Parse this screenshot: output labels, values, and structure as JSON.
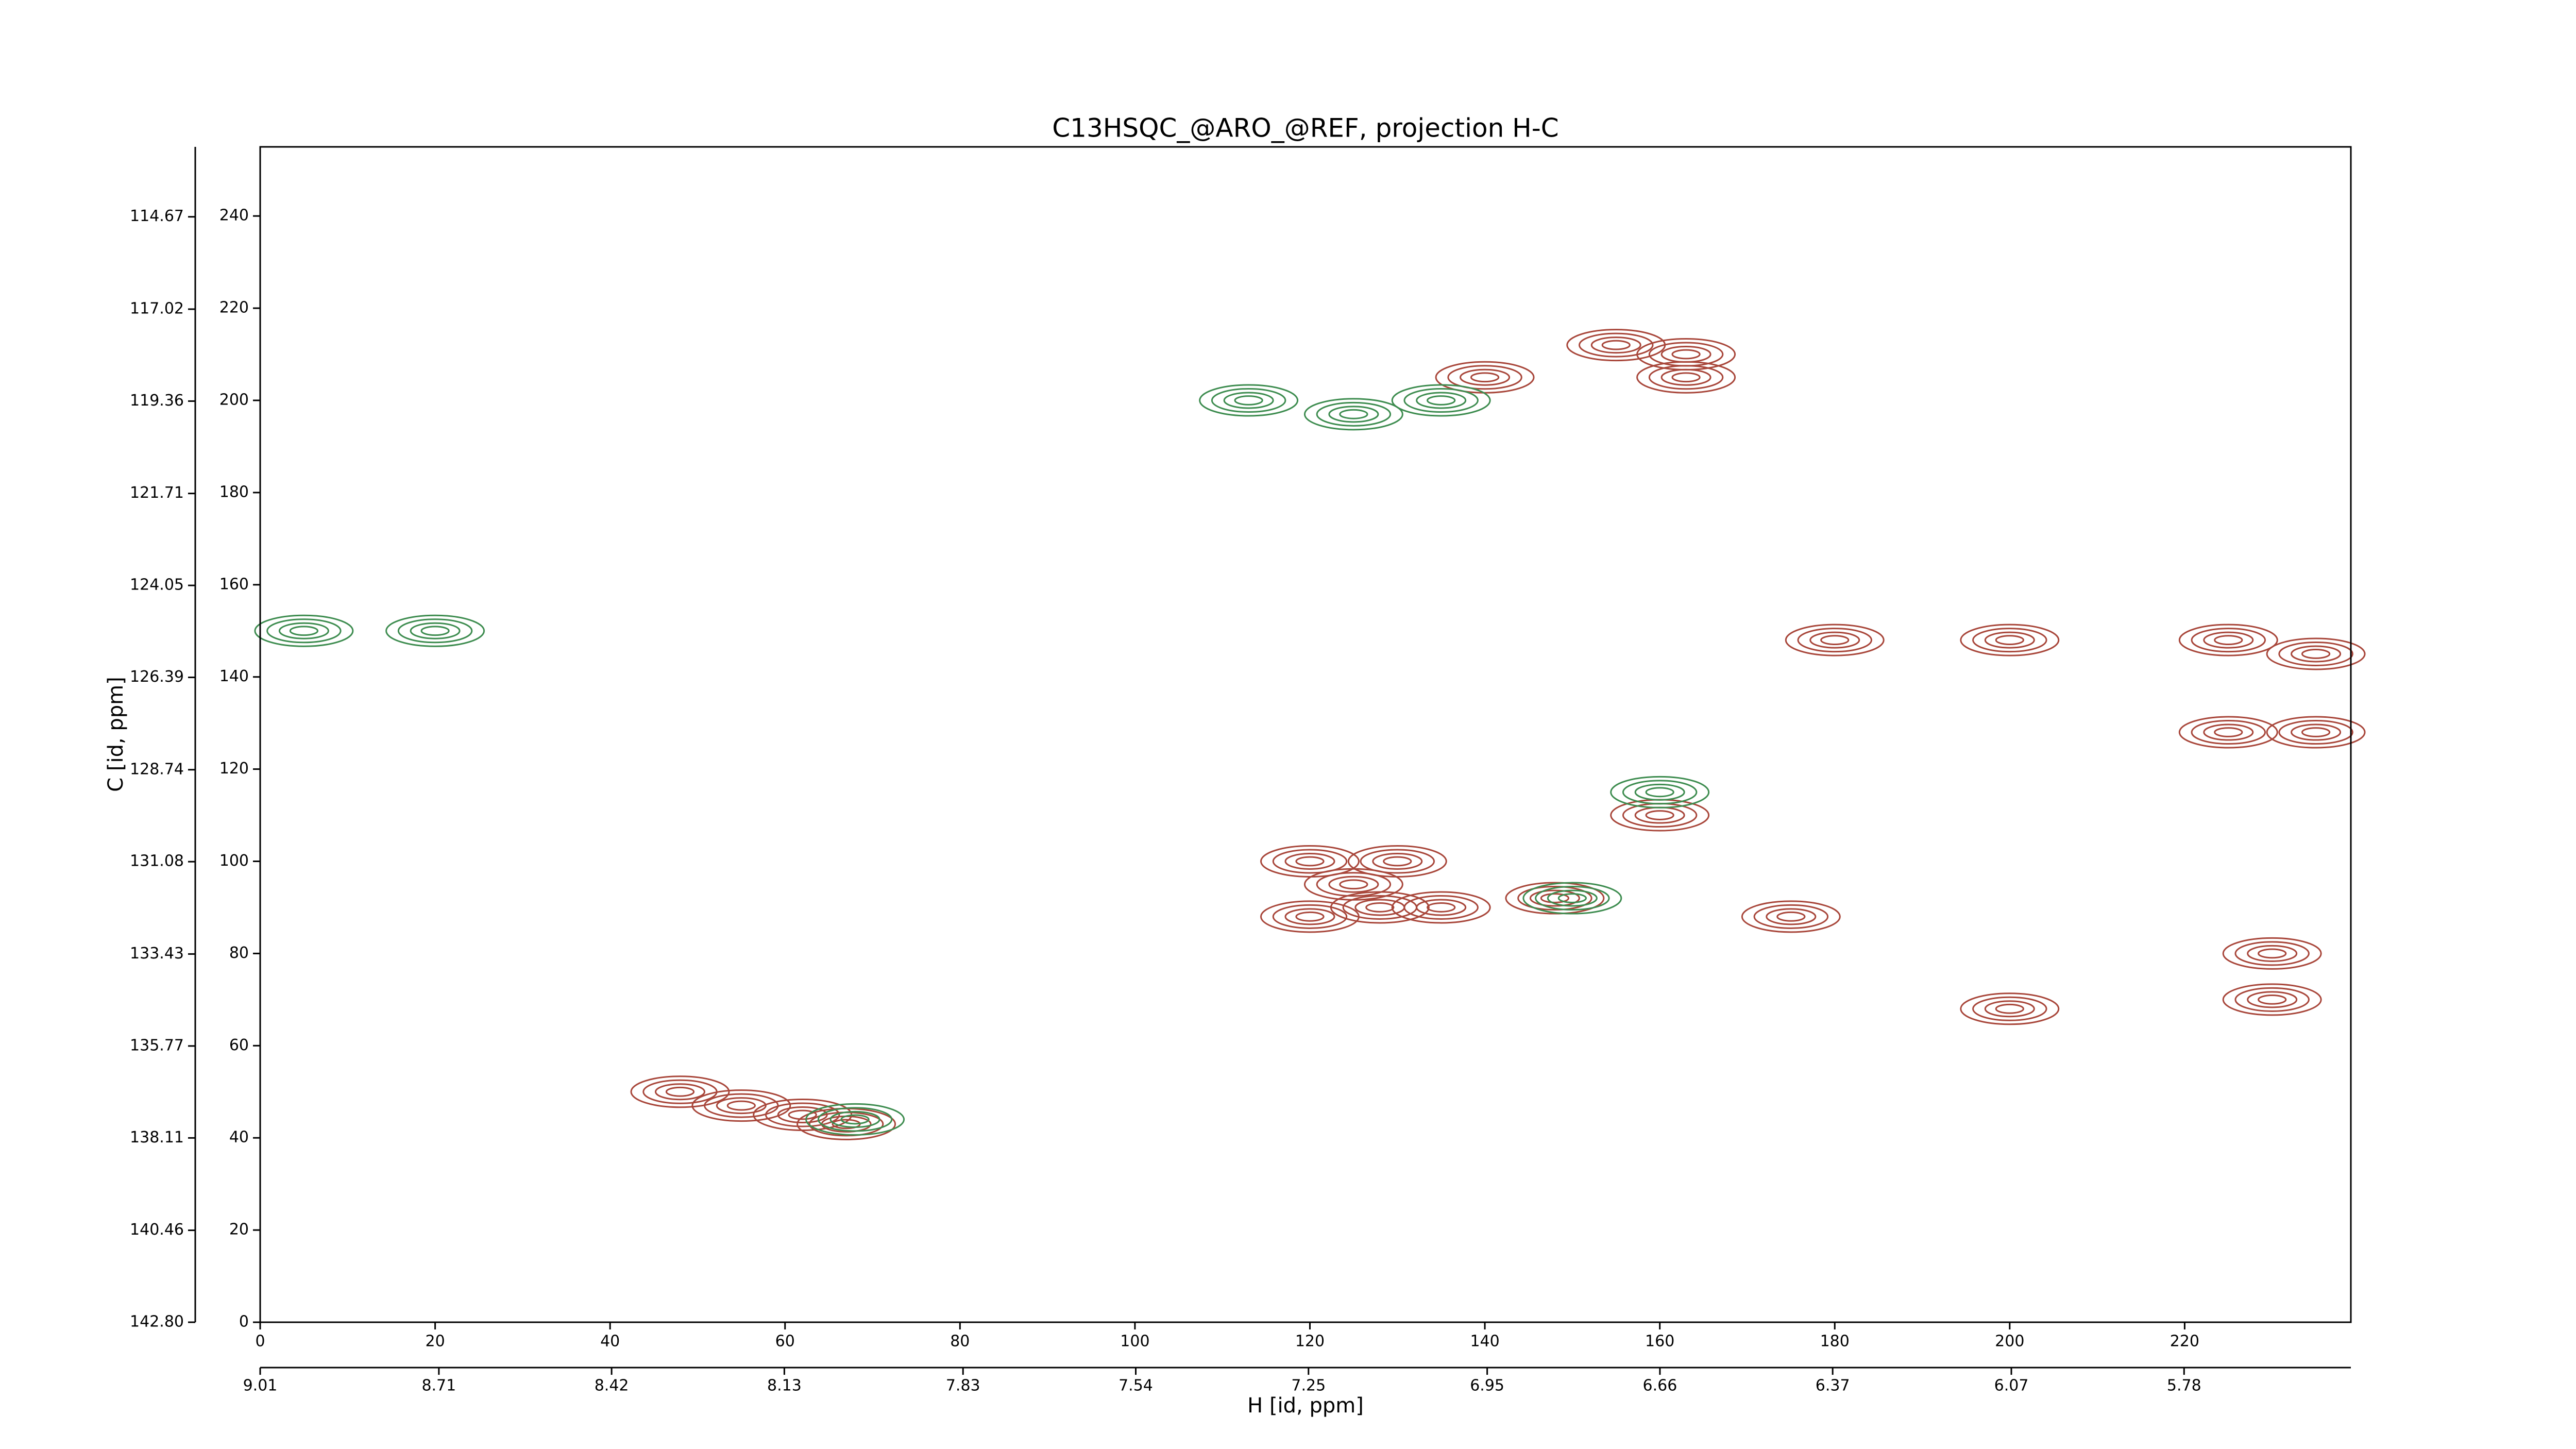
{
  "chart_data": {
    "type": "contour",
    "title": "C13HSQC_@ARO_@REF, projection H-C",
    "xlabel": "H [id, ppm]",
    "ylabel": "C [id, ppm]",
    "xlim": [
      0,
      239
    ],
    "ylim": [
      0,
      255
    ],
    "xticks": [
      0,
      20,
      40,
      60,
      80,
      100,
      120,
      140,
      160,
      180,
      200,
      220
    ],
    "yticks": [
      0,
      20,
      40,
      60,
      80,
      100,
      120,
      140,
      160,
      180,
      200,
      220,
      240
    ],
    "x2lim": [
      9.01,
      5.5
    ],
    "x2ticks": [
      9.01,
      8.71,
      8.42,
      8.13,
      7.83,
      7.54,
      7.25,
      6.95,
      6.66,
      6.37,
      6.07,
      5.78
    ],
    "y2lim": [
      142.8,
      112.89
    ],
    "y2ticks": [
      {
        "value": 142.8,
        "label": "142.80"
      },
      140.46,
      138.11,
      135.77,
      133.43,
      131.08,
      {
        "value": 128.74,
        "label": "128.74"
      },
      126.39,
      124.05,
      121.71,
      119.36,
      117.02,
      114.67
    ],
    "series": [
      {
        "color": "#a8463a",
        "x": [
          48,
          55,
          62,
          67,
          120,
          125,
          130,
          128,
          120,
          135,
          148,
          160,
          175,
          140,
          155,
          163,
          163,
          180,
          200,
          225,
          235,
          230,
          230,
          200,
          225,
          235
        ],
        "y": [
          50,
          47,
          45,
          43,
          100,
          95,
          100,
          90,
          88,
          90,
          92,
          110,
          88,
          205,
          212,
          210,
          205,
          148,
          148,
          148,
          145,
          80,
          70,
          68,
          128,
          128
        ]
      },
      {
        "color": "#3d8c4f",
        "x": [
          113,
          125,
          135,
          5,
          20,
          68,
          150,
          160
        ],
        "y": [
          200,
          197,
          200,
          150,
          150,
          44,
          92,
          115
        ]
      }
    ]
  }
}
